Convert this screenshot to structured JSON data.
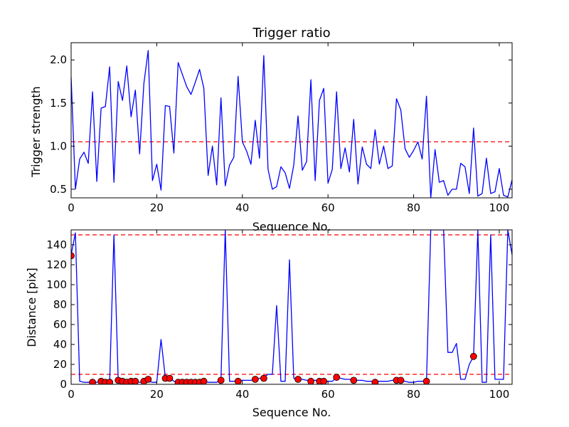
{
  "chart_data": [
    {
      "type": "line",
      "title": "Trigger ratio",
      "xlabel": "Sequence No.",
      "ylabel": "Trigger strength",
      "xlim": [
        0,
        103
      ],
      "ylim": [
        0.4,
        2.2
      ],
      "xticks": [
        "0",
        "20",
        "40",
        "60",
        "80",
        "100"
      ],
      "yticks": [
        "0.5",
        "1.0",
        "1.5",
        "2.0"
      ],
      "grid": false,
      "threshold_lines": [
        1.05
      ],
      "colors": {
        "line": "#0000ff",
        "threshold": "#ff0000"
      },
      "series": [
        {
          "x": [
            0,
            1,
            2,
            3,
            4,
            5,
            6,
            7,
            8,
            9,
            10,
            11,
            12,
            13,
            14,
            15,
            16,
            17,
            18,
            19,
            20,
            21,
            22,
            23,
            24,
            25,
            26,
            27,
            28,
            29,
            30,
            31,
            32,
            33,
            34,
            35,
            36,
            37,
            38,
            39,
            40,
            41,
            42,
            43,
            44,
            45,
            46,
            47,
            48,
            49,
            50,
            51,
            52,
            53,
            54,
            55,
            56,
            57,
            58,
            59,
            60,
            61,
            62,
            63,
            64,
            65,
            66,
            67,
            68,
            69,
            70,
            71,
            72,
            73,
            74,
            75,
            76,
            77,
            78,
            79,
            80,
            81,
            82,
            83,
            84,
            85,
            86,
            87,
            88,
            89,
            90,
            91,
            92,
            93,
            94,
            95,
            96,
            97,
            98,
            99,
            100,
            101,
            102,
            103
          ],
          "y": [
            1.8,
            0.5,
            0.85,
            0.93,
            0.8,
            1.63,
            0.59,
            1.44,
            1.46,
            1.92,
            0.58,
            1.75,
            1.53,
            1.93,
            1.34,
            1.65,
            0.91,
            1.73,
            2.11,
            0.6,
            0.79,
            0.49,
            1.47,
            1.46,
            0.92,
            1.97,
            1.83,
            1.69,
            1.6,
            1.74,
            1.89,
            1.67,
            0.66,
            1.0,
            0.55,
            1.56,
            0.54,
            0.78,
            0.87,
            1.81,
            1.05,
            0.94,
            0.79,
            1.3,
            0.86,
            2.05,
            0.73,
            0.5,
            0.53,
            0.76,
            0.69,
            0.51,
            0.78,
            1.35,
            0.72,
            0.82,
            1.77,
            0.6,
            1.53,
            1.67,
            0.57,
            0.73,
            1.63,
            0.74,
            0.98,
            0.7,
            1.31,
            0.56,
            0.99,
            0.79,
            0.74,
            1.19,
            0.79,
            1.0,
            0.74,
            0.77,
            1.55,
            1.42,
            0.97,
            0.87,
            0.95,
            1.05,
            0.85,
            1.58,
            0.4,
            0.96,
            0.58,
            0.6,
            0.43,
            0.5,
            0.5,
            0.8,
            0.76,
            0.45,
            1.21,
            0.42,
            0.45,
            0.86,
            0.45,
            0.47,
            0.74,
            0.43,
            0.41,
            0.61
          ]
        }
      ]
    },
    {
      "type": "line",
      "title": "",
      "xlabel": "Sequence No.",
      "ylabel": "Distance [pix]",
      "xlim": [
        0,
        103
      ],
      "ylim": [
        0,
        155
      ],
      "xticks": [
        "0",
        "20",
        "40",
        "60",
        "80",
        "100"
      ],
      "yticks": [
        "0",
        "20",
        "40",
        "60",
        "80",
        "100",
        "120",
        "140"
      ],
      "grid": false,
      "threshold_lines": [
        10,
        150
      ],
      "colors": {
        "line": "#0000ff",
        "threshold": "#ff0000",
        "marker": "#ff0000"
      },
      "series": [
        {
          "x": [
            0,
            1,
            2,
            3,
            4,
            5,
            6,
            7,
            8,
            9,
            10,
            11,
            12,
            13,
            14,
            15,
            16,
            17,
            18,
            19,
            20,
            21,
            22,
            23,
            24,
            25,
            26,
            27,
            28,
            29,
            30,
            31,
            32,
            33,
            34,
            35,
            36,
            37,
            38,
            39,
            40,
            41,
            42,
            43,
            44,
            45,
            46,
            47,
            48,
            49,
            50,
            51,
            52,
            53,
            54,
            55,
            56,
            57,
            58,
            59,
            60,
            61,
            62,
            63,
            64,
            65,
            66,
            67,
            68,
            69,
            70,
            71,
            72,
            73,
            74,
            75,
            76,
            77,
            78,
            79,
            80,
            81,
            82,
            83,
            84,
            85,
            86,
            87,
            88,
            89,
            90,
            91,
            92,
            93,
            94,
            95,
            96,
            97,
            98,
            99,
            100,
            101,
            102,
            103
          ],
          "y": [
            130,
            152,
            3,
            2,
            2,
            2,
            2,
            3,
            2,
            2,
            150,
            4,
            3,
            3,
            3,
            3,
            2,
            2,
            3,
            2,
            2,
            45,
            7,
            7,
            3,
            2,
            2,
            2,
            2,
            3,
            3,
            3,
            2,
            2,
            2,
            5,
            155,
            3,
            3,
            3,
            4,
            4,
            4,
            5,
            6,
            7,
            10,
            10,
            79,
            3,
            3,
            125,
            6,
            5,
            5,
            4,
            4,
            4,
            4,
            3,
            3,
            3,
            7,
            6,
            5,
            5,
            4,
            4,
            4,
            3,
            3,
            3,
            3,
            3,
            3,
            4,
            4,
            4,
            3,
            2,
            2,
            3,
            3,
            3,
            155,
            155,
            155,
            155,
            32,
            32,
            41,
            5,
            5,
            20,
            28,
            155,
            2,
            2,
            150,
            5,
            5,
            5,
            155,
            130
          ]
        }
      ],
      "markers": {
        "x": [
          0,
          5,
          7,
          8,
          9,
          11,
          12,
          13,
          14,
          15,
          17,
          18,
          22,
          23,
          25,
          26,
          27,
          28,
          29,
          30,
          31,
          35,
          39,
          43,
          45,
          53,
          56,
          58,
          59,
          62,
          66,
          71,
          76,
          77,
          83,
          94
        ],
        "y": [
          129,
          2,
          3,
          2,
          2,
          4,
          3,
          2,
          3,
          3,
          3,
          5,
          6,
          6,
          2,
          2,
          2,
          2,
          2,
          2,
          3,
          4,
          3,
          5,
          6,
          5,
          3,
          3,
          3,
          7,
          4,
          2,
          4,
          4,
          3,
          28
        ]
      }
    }
  ]
}
